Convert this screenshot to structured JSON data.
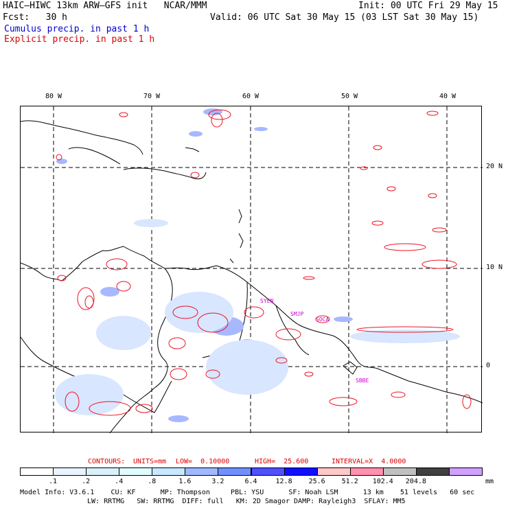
{
  "header": {
    "model_line": "HAIC–HIWC 13km ARW–GFS init   NCAR/MMM",
    "init_line": "Init: 00 UTC Fri 29 May 15",
    "fcst_line": "Fcst:   30 h",
    "valid_line": "Valid: 06 UTC Sat 30 May 15 (03 LST Sat 30 May 15)",
    "cumulus_label": "Cumulus precip. in past 1 h",
    "explicit_label": "Explicit precip. in past 1 h"
  },
  "colors": {
    "cumulus_text": "#0000cc",
    "explicit_text": "#dd0000",
    "contour": "#ee1122",
    "station": "#cc00cc"
  },
  "map": {
    "lon_labels": [
      "80 W",
      "70 W",
      "60 W",
      "50 W",
      "40 W"
    ],
    "lat_labels": [
      "20 N",
      "10 N",
      "0"
    ],
    "stations": [
      "SYEN",
      "SMJP",
      "SOCA",
      "SBBE"
    ]
  },
  "contour_info": {
    "contours": "CONTOURS:",
    "units": "UNITS=mm",
    "low": "LOW=  0.10000",
    "high": "HIGH=  25.600",
    "interval": "INTERVAL=X  4.0000"
  },
  "colorbar": {
    "ticks": [
      ".1",
      ".2",
      ".4",
      ".8",
      "1.6",
      "3.2",
      "6.4",
      "12.8",
      "25.6",
      "51.2",
      "102.4",
      "204.8"
    ],
    "unit": "mm",
    "colors": [
      "#ffffff",
      "#e8f4ff",
      "#d8f0fa",
      "#e0fcff",
      "#c8e8ff",
      "#a0b8ff",
      "#7090ff",
      "#5050ff",
      "#1010ff",
      "#ffc8c8",
      "#ff90b0",
      "#c0c0c0",
      "#404040",
      "#d0a0ff"
    ]
  },
  "model_info": {
    "line1": "Model Info: V3.6.1    CU: KF      MP: Thompson     PBL: YSU      SF: Noah LSM      13 km    51 levels   60 sec",
    "line2": "LW: RRTMG   SW: RRTMG  DIFF: full   KM: 2D Smagor DAMP: Rayleigh3  SFLAY: MM5"
  }
}
